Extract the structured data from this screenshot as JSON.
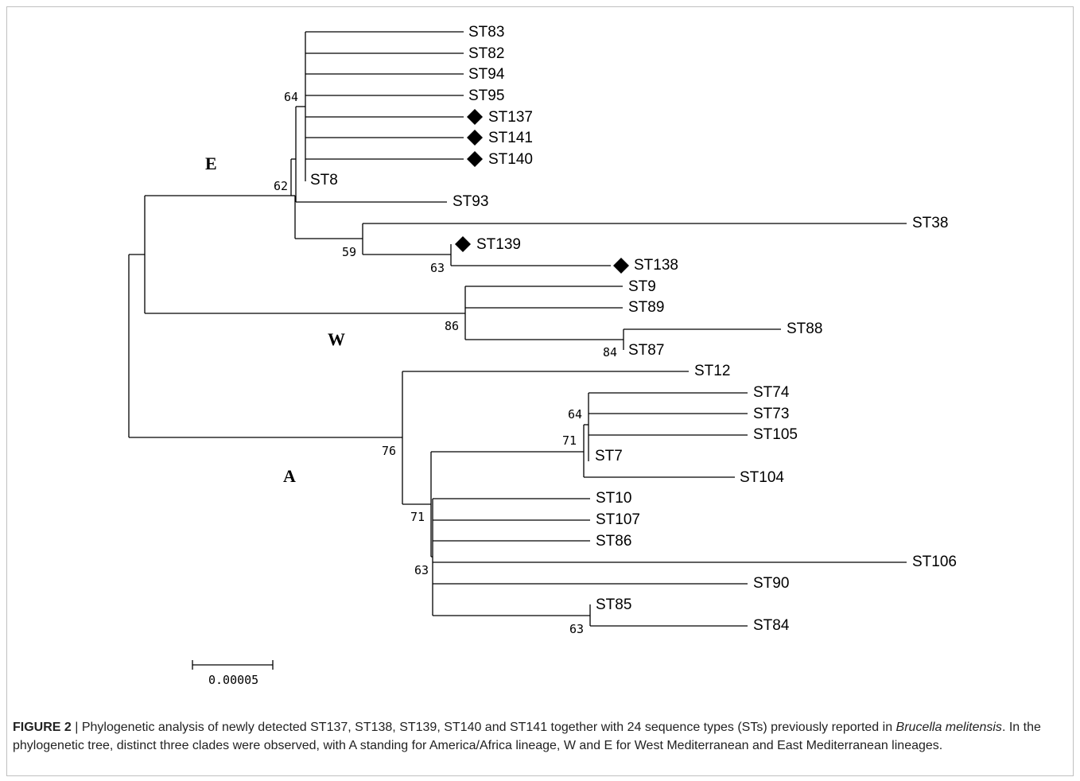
{
  "figure": {
    "leaves": [
      "ST83",
      "ST82",
      "ST94",
      "ST95",
      "ST137",
      "ST141",
      "ST140",
      "ST8",
      "ST93",
      "ST38",
      "ST139",
      "ST138",
      "ST9",
      "ST89",
      "ST88",
      "ST87",
      "ST12",
      "ST74",
      "ST73",
      "ST105",
      "ST7",
      "ST104",
      "ST10",
      "ST107",
      "ST86",
      "ST106",
      "ST90",
      "ST85",
      "ST84"
    ],
    "new_sequence_types": [
      "ST137",
      "ST141",
      "ST140",
      "ST139",
      "ST138"
    ],
    "bootstrap_values": [
      "64",
      "62",
      "59",
      "63",
      "86",
      "84",
      "76",
      "64",
      "71",
      "71",
      "63",
      "63"
    ],
    "clade_labels": {
      "E": "E",
      "W": "W",
      "A": "A"
    },
    "scale_bar_label": "0.00005",
    "marker_icon": "black-diamond"
  },
  "caption": {
    "figure_label": "FIGURE 2",
    "separator": " | ",
    "text_part1": "Phylogenetic analysis of newly detected ST137, ST138, ST139, ST140 and ST141 together with 24 sequence types (STs) previously reported in ",
    "species": "Brucella melitensis",
    "text_part2": ". In the phylogenetic tree, distinct three clades were observed, with A standing for America/Africa lineage, W and E for West Mediterranean and East Mediterranean lineages."
  }
}
